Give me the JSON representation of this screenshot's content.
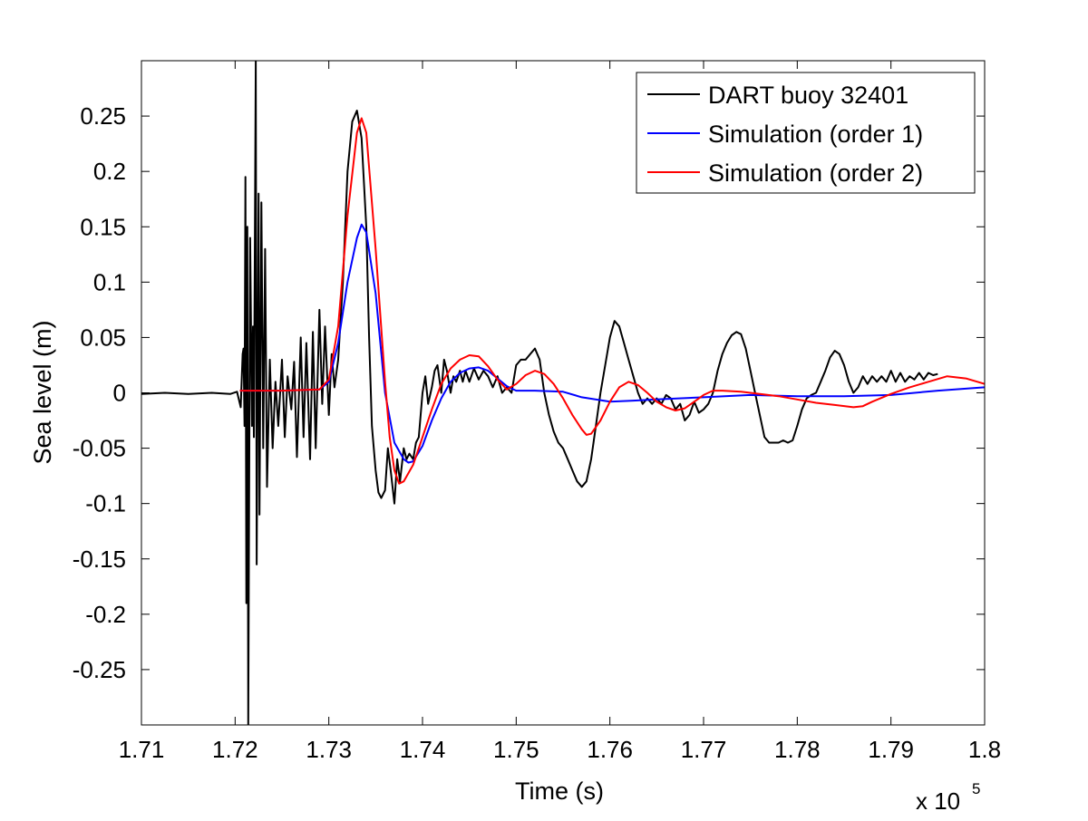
{
  "chart_data": {
    "type": "line",
    "title": "",
    "xlabel": "Time (s)",
    "ylabel": "Sea level (m)",
    "x_scale_factor": {
      "base": "x 10",
      "exponent": "5"
    },
    "xlim": [
      1.71,
      1.8
    ],
    "ylim": [
      -0.3,
      0.3
    ],
    "xticks": [
      1.71,
      1.72,
      1.73,
      1.74,
      1.75,
      1.76,
      1.77,
      1.78,
      1.79,
      1.8
    ],
    "xtick_labels": [
      "1.71",
      "1.72",
      "1.73",
      "1.74",
      "1.75",
      "1.76",
      "1.77",
      "1.78",
      "1.79",
      "1.8"
    ],
    "yticks": [
      -0.25,
      -0.2,
      -0.15,
      -0.1,
      -0.05,
      0,
      0.05,
      0.1,
      0.15,
      0.2,
      0.25
    ],
    "ytick_labels": [
      "-0.25",
      "-0.2",
      "-0.15",
      "-0.1",
      "-0.05",
      "0",
      "0.05",
      "0.1",
      "0.15",
      "0.2",
      "0.25"
    ],
    "grid": false,
    "legend_position": "top-right",
    "series": [
      {
        "name": "DART buoy 32401",
        "color": "#000000",
        "points": [
          [
            1.71,
            -0.001
          ],
          [
            1.7125,
            0.0
          ],
          [
            1.715,
            -0.001
          ],
          [
            1.7175,
            0.0
          ],
          [
            1.7195,
            -0.001
          ],
          [
            1.7202,
            0.001
          ],
          [
            1.7206,
            -0.013
          ],
          [
            1.7208,
            0.035
          ],
          [
            1.7209,
            0.04
          ],
          [
            1.721,
            -0.03
          ],
          [
            1.7211,
            0.195
          ],
          [
            1.7212,
            -0.19
          ],
          [
            1.7213,
            0.15
          ],
          [
            1.7214,
            -0.3
          ],
          [
            1.7216,
            0.14
          ],
          [
            1.7218,
            -0.03
          ],
          [
            1.7219,
            0.06
          ],
          [
            1.722,
            -0.04
          ],
          [
            1.7222,
            0.3
          ],
          [
            1.7223,
            -0.155
          ],
          [
            1.7225,
            0.18
          ],
          [
            1.7226,
            -0.11
          ],
          [
            1.7228,
            0.172
          ],
          [
            1.723,
            -0.05
          ],
          [
            1.7232,
            0.13
          ],
          [
            1.7234,
            -0.085
          ],
          [
            1.7237,
            0.03
          ],
          [
            1.724,
            -0.05
          ],
          [
            1.7243,
            0.01
          ],
          [
            1.7246,
            -0.03
          ],
          [
            1.725,
            0.03
          ],
          [
            1.7253,
            -0.04
          ],
          [
            1.7256,
            0.015
          ],
          [
            1.726,
            -0.015
          ],
          [
            1.7263,
            0.028
          ],
          [
            1.7266,
            -0.058
          ],
          [
            1.727,
            0.05
          ],
          [
            1.7273,
            -0.04
          ],
          [
            1.7276,
            0.045
          ],
          [
            1.728,
            -0.06
          ],
          [
            1.7283,
            0.055
          ],
          [
            1.7286,
            -0.05
          ],
          [
            1.729,
            0.075
          ],
          [
            1.7293,
            -0.01
          ],
          [
            1.7296,
            0.06
          ],
          [
            1.73,
            -0.02
          ],
          [
            1.7303,
            0.035
          ],
          [
            1.7306,
            0.005
          ],
          [
            1.731,
            0.03
          ],
          [
            1.7315,
            0.1
          ],
          [
            1.732,
            0.2
          ],
          [
            1.7325,
            0.245
          ],
          [
            1.733,
            0.255
          ],
          [
            1.7335,
            0.23
          ],
          [
            1.734,
            0.15
          ],
          [
            1.7343,
            0.05
          ],
          [
            1.7346,
            -0.03
          ],
          [
            1.735,
            -0.07
          ],
          [
            1.7353,
            -0.09
          ],
          [
            1.7356,
            -0.095
          ],
          [
            1.736,
            -0.088
          ],
          [
            1.7363,
            -0.05
          ],
          [
            1.7366,
            -0.07
          ],
          [
            1.737,
            -0.1
          ],
          [
            1.7373,
            -0.06
          ],
          [
            1.7376,
            -0.08
          ],
          [
            1.738,
            -0.05
          ],
          [
            1.7383,
            -0.06
          ],
          [
            1.7386,
            -0.055
          ],
          [
            1.739,
            -0.06
          ],
          [
            1.7393,
            -0.045
          ],
          [
            1.7396,
            -0.04
          ],
          [
            1.74,
            0.0
          ],
          [
            1.7403,
            0.015
          ],
          [
            1.7406,
            -0.01
          ],
          [
            1.741,
            0.005
          ],
          [
            1.7413,
            0.02
          ],
          [
            1.7416,
            0.025
          ],
          [
            1.742,
            0.0
          ],
          [
            1.7423,
            0.03
          ],
          [
            1.7426,
            0.02
          ],
          [
            1.743,
            0.0
          ],
          [
            1.7433,
            0.015
          ],
          [
            1.7436,
            0.01
          ],
          [
            1.744,
            0.02
          ],
          [
            1.7443,
            0.01
          ],
          [
            1.7446,
            0.02
          ],
          [
            1.745,
            0.01
          ],
          [
            1.7455,
            0.022
          ],
          [
            1.746,
            0.012
          ],
          [
            1.7465,
            0.02
          ],
          [
            1.747,
            0.015
          ],
          [
            1.7475,
            0.005
          ],
          [
            1.748,
            0.015
          ],
          [
            1.7485,
            0.0
          ],
          [
            1.749,
            0.005
          ],
          [
            1.7495,
            0.0
          ],
          [
            1.75,
            0.025
          ],
          [
            1.7505,
            0.03
          ],
          [
            1.751,
            0.03
          ],
          [
            1.7515,
            0.035
          ],
          [
            1.752,
            0.04
          ],
          [
            1.7525,
            0.03
          ],
          [
            1.753,
            0.0
          ],
          [
            1.7535,
            -0.02
          ],
          [
            1.754,
            -0.035
          ],
          [
            1.7545,
            -0.045
          ],
          [
            1.755,
            -0.05
          ],
          [
            1.7555,
            -0.06
          ],
          [
            1.756,
            -0.07
          ],
          [
            1.7565,
            -0.08
          ],
          [
            1.757,
            -0.085
          ],
          [
            1.7575,
            -0.08
          ],
          [
            1.758,
            -0.06
          ],
          [
            1.7585,
            -0.03
          ],
          [
            1.759,
            0.0
          ],
          [
            1.7595,
            0.025
          ],
          [
            1.76,
            0.05
          ],
          [
            1.7605,
            0.065
          ],
          [
            1.761,
            0.06
          ],
          [
            1.7615,
            0.045
          ],
          [
            1.762,
            0.03
          ],
          [
            1.7625,
            0.015
          ],
          [
            1.763,
            0.0
          ],
          [
            1.7635,
            -0.01
          ],
          [
            1.764,
            -0.005
          ],
          [
            1.7645,
            -0.01
          ],
          [
            1.765,
            -0.005
          ],
          [
            1.7655,
            -0.01
          ],
          [
            1.766,
            -0.002
          ],
          [
            1.7665,
            -0.005
          ],
          [
            1.767,
            -0.015
          ],
          [
            1.7675,
            -0.01
          ],
          [
            1.768,
            -0.025
          ],
          [
            1.7685,
            -0.02
          ],
          [
            1.769,
            -0.008
          ],
          [
            1.7695,
            -0.018
          ],
          [
            1.77,
            -0.015
          ],
          [
            1.7705,
            -0.01
          ],
          [
            1.771,
            0.0
          ],
          [
            1.7715,
            0.02
          ],
          [
            1.772,
            0.035
          ],
          [
            1.7725,
            0.045
          ],
          [
            1.773,
            0.052
          ],
          [
            1.7735,
            0.055
          ],
          [
            1.774,
            0.053
          ],
          [
            1.7745,
            0.04
          ],
          [
            1.775,
            0.02
          ],
          [
            1.7755,
            0.0
          ],
          [
            1.776,
            -0.02
          ],
          [
            1.7765,
            -0.04
          ],
          [
            1.777,
            -0.045
          ],
          [
            1.7775,
            -0.045
          ],
          [
            1.778,
            -0.045
          ],
          [
            1.7785,
            -0.043
          ],
          [
            1.779,
            -0.045
          ],
          [
            1.7795,
            -0.043
          ],
          [
            1.78,
            -0.03
          ],
          [
            1.7805,
            -0.015
          ],
          [
            1.781,
            -0.005
          ],
          [
            1.7815,
            -0.002
          ],
          [
            1.782,
            0.0
          ],
          [
            1.7825,
            0.01
          ],
          [
            1.783,
            0.02
          ],
          [
            1.7835,
            0.032
          ],
          [
            1.784,
            0.038
          ],
          [
            1.7845,
            0.035
          ],
          [
            1.785,
            0.025
          ],
          [
            1.7855,
            0.01
          ],
          [
            1.786,
            0.0
          ],
          [
            1.7865,
            0.005
          ],
          [
            1.787,
            0.015
          ],
          [
            1.7875,
            0.008
          ],
          [
            1.788,
            0.015
          ],
          [
            1.7885,
            0.01
          ],
          [
            1.789,
            0.015
          ],
          [
            1.7895,
            0.01
          ],
          [
            1.79,
            0.02
          ],
          [
            1.7905,
            0.01
          ],
          [
            1.791,
            0.018
          ],
          [
            1.7915,
            0.01
          ],
          [
            1.792,
            0.015
          ],
          [
            1.7925,
            0.012
          ],
          [
            1.793,
            0.018
          ],
          [
            1.7935,
            0.012
          ],
          [
            1.794,
            0.018
          ],
          [
            1.7945,
            0.016
          ],
          [
            1.795,
            0.017
          ]
        ]
      },
      {
        "name": "Simulation (order 1)",
        "color": "#0000ff",
        "points": [
          [
            1.7205,
            0.002
          ],
          [
            1.725,
            0.002
          ],
          [
            1.729,
            0.003
          ],
          [
            1.73,
            0.01
          ],
          [
            1.731,
            0.045
          ],
          [
            1.732,
            0.1
          ],
          [
            1.733,
            0.14
          ],
          [
            1.7335,
            0.152
          ],
          [
            1.734,
            0.145
          ],
          [
            1.735,
            0.09
          ],
          [
            1.736,
            0.0
          ],
          [
            1.737,
            -0.045
          ],
          [
            1.738,
            -0.06
          ],
          [
            1.7385,
            -0.063
          ],
          [
            1.739,
            -0.062
          ],
          [
            1.74,
            -0.048
          ],
          [
            1.741,
            -0.025
          ],
          [
            1.742,
            -0.005
          ],
          [
            1.743,
            0.01
          ],
          [
            1.744,
            0.018
          ],
          [
            1.745,
            0.022
          ],
          [
            1.746,
            0.023
          ],
          [
            1.747,
            0.02
          ],
          [
            1.748,
            0.013
          ],
          [
            1.749,
            0.006
          ],
          [
            1.75,
            0.002
          ],
          [
            1.752,
            0.002
          ],
          [
            1.755,
            0.001
          ],
          [
            1.757,
            -0.004
          ],
          [
            1.76,
            -0.008
          ],
          [
            1.7625,
            -0.007
          ],
          [
            1.765,
            -0.006
          ],
          [
            1.77,
            -0.004
          ],
          [
            1.775,
            -0.002
          ],
          [
            1.78,
            -0.003
          ],
          [
            1.785,
            -0.003
          ],
          [
            1.79,
            -0.002
          ],
          [
            1.795,
            0.002
          ],
          [
            1.8,
            0.005
          ]
        ]
      },
      {
        "name": "Simulation (order 2)",
        "color": "#ff0000",
        "points": [
          [
            1.7205,
            0.002
          ],
          [
            1.725,
            0.002
          ],
          [
            1.729,
            0.003
          ],
          [
            1.73,
            0.012
          ],
          [
            1.731,
            0.06
          ],
          [
            1.732,
            0.16
          ],
          [
            1.733,
            0.235
          ],
          [
            1.7335,
            0.248
          ],
          [
            1.734,
            0.235
          ],
          [
            1.735,
            0.13
          ],
          [
            1.736,
            0.01
          ],
          [
            1.7365,
            -0.04
          ],
          [
            1.737,
            -0.07
          ],
          [
            1.7375,
            -0.082
          ],
          [
            1.738,
            -0.08
          ],
          [
            1.739,
            -0.065
          ],
          [
            1.74,
            -0.04
          ],
          [
            1.741,
            -0.015
          ],
          [
            1.742,
            0.008
          ],
          [
            1.743,
            0.022
          ],
          [
            1.744,
            0.03
          ],
          [
            1.745,
            0.034
          ],
          [
            1.746,
            0.033
          ],
          [
            1.747,
            0.024
          ],
          [
            1.748,
            0.012
          ],
          [
            1.749,
            0.003
          ],
          [
            1.75,
            0.008
          ],
          [
            1.751,
            0.016
          ],
          [
            1.752,
            0.02
          ],
          [
            1.753,
            0.017
          ],
          [
            1.754,
            0.008
          ],
          [
            1.755,
            -0.005
          ],
          [
            1.756,
            -0.02
          ],
          [
            1.757,
            -0.033
          ],
          [
            1.7575,
            -0.038
          ],
          [
            1.758,
            -0.037
          ],
          [
            1.759,
            -0.025
          ],
          [
            1.76,
            -0.008
          ],
          [
            1.761,
            0.005
          ],
          [
            1.762,
            0.01
          ],
          [
            1.763,
            0.007
          ],
          [
            1.764,
            0.0
          ],
          [
            1.765,
            -0.008
          ],
          [
            1.766,
            -0.013
          ],
          [
            1.767,
            -0.016
          ],
          [
            1.768,
            -0.014
          ],
          [
            1.769,
            -0.008
          ],
          [
            1.77,
            -0.002
          ],
          [
            1.771,
            0.002
          ],
          [
            1.772,
            0.002
          ],
          [
            1.774,
            0.001
          ],
          [
            1.776,
            -0.001
          ],
          [
            1.778,
            -0.003
          ],
          [
            1.78,
            -0.006
          ],
          [
            1.782,
            -0.009
          ],
          [
            1.784,
            -0.011
          ],
          [
            1.786,
            -0.013
          ],
          [
            1.787,
            -0.012
          ],
          [
            1.788,
            -0.008
          ],
          [
            1.79,
            -0.001
          ],
          [
            1.792,
            0.005
          ],
          [
            1.794,
            0.01
          ],
          [
            1.796,
            0.015
          ],
          [
            1.798,
            0.013
          ],
          [
            1.8,
            0.008
          ]
        ]
      }
    ]
  }
}
